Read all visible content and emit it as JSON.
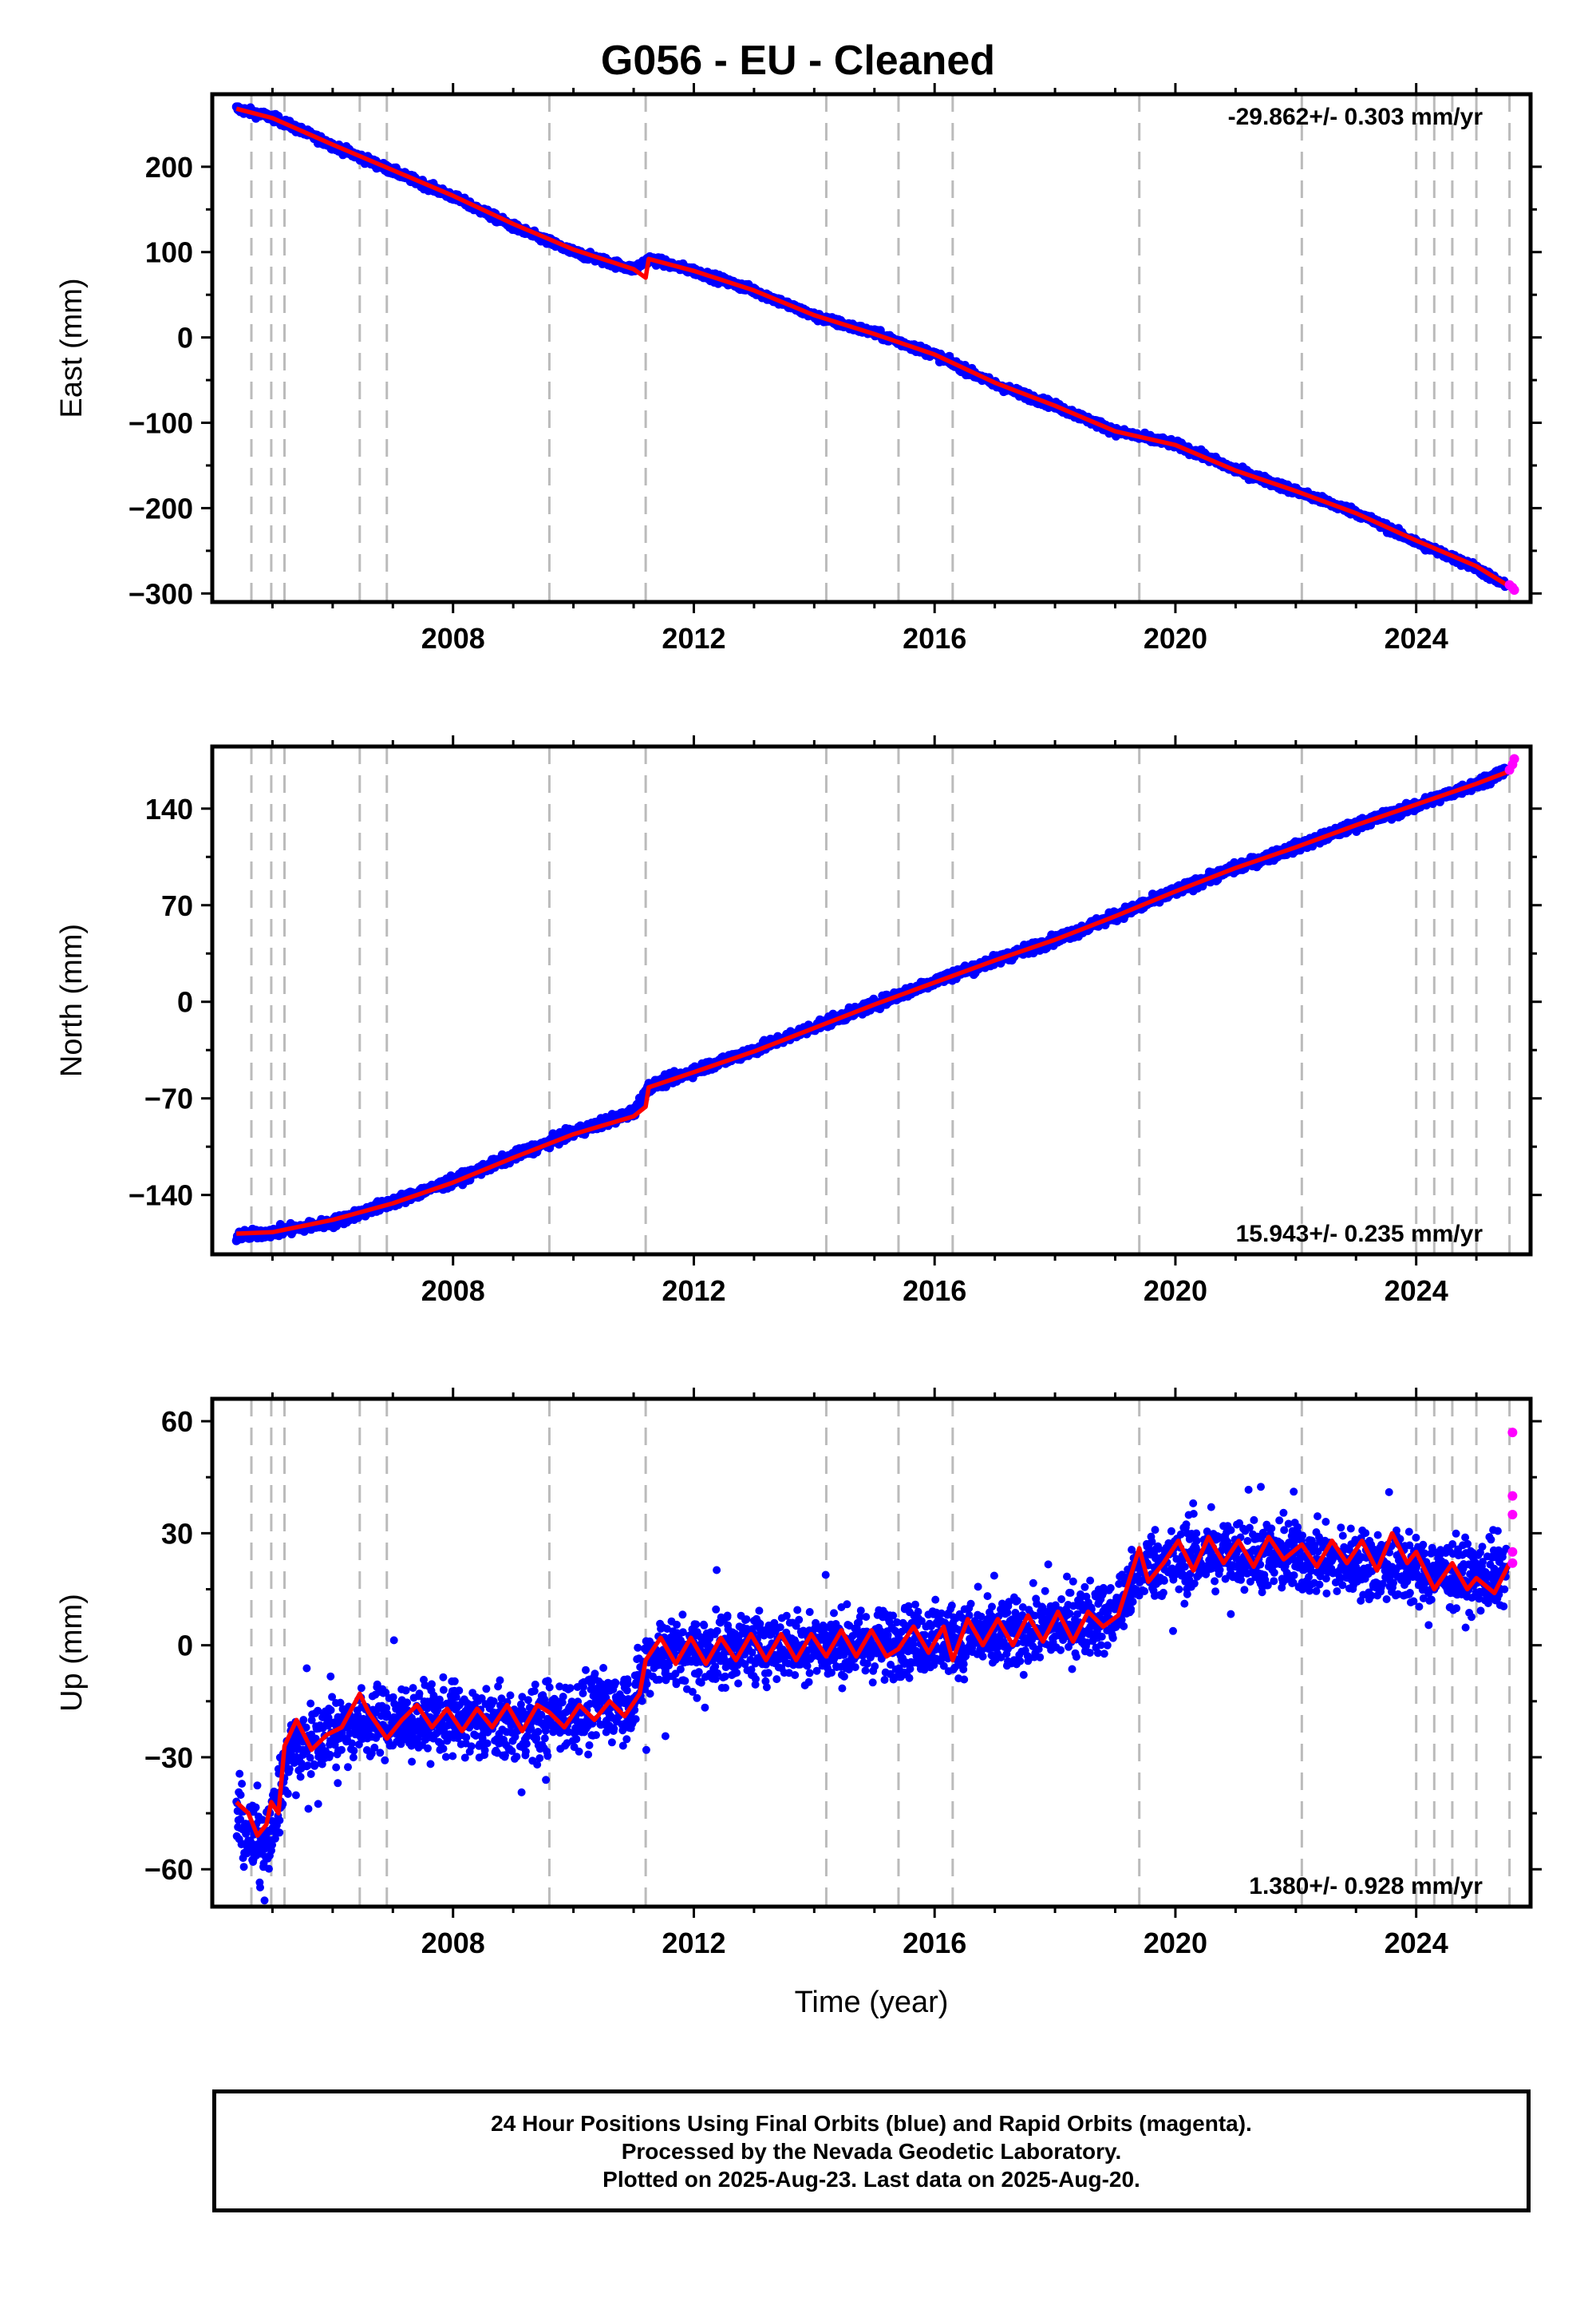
{
  "title": "G056  - EU - Cleaned",
  "footer": {
    "line1": "24 Hour Positions Using Final Orbits (blue) and Rapid Orbits (magenta).",
    "line2": "Processed by the Nevada Geodetic Laboratory.",
    "line3": "Plotted on 2025-Aug-23. Last data on 2025-Aug-20."
  },
  "colors": {
    "final": "#0000ff",
    "rapid": "#ff00ff",
    "model": "#ff0000",
    "breaks": "#bbbbbb"
  },
  "chart_data": [
    {
      "type": "scatter",
      "title": "",
      "ylabel": "East (mm)",
      "xlabel": "",
      "xlim": [
        2004.0,
        2025.9
      ],
      "ylim": [
        -310,
        285
      ],
      "xticks": [
        2008,
        2012,
        2016,
        2020,
        2024
      ],
      "xtick_labels": [
        "2008",
        "2012",
        "2016",
        "2020",
        "2024"
      ],
      "yticks": [
        200,
        100,
        0,
        -100,
        -200,
        -300
      ],
      "ytick_labels": [
        "200",
        "100",
        "0",
        "−100",
        "−200",
        "−300"
      ],
      "rate_label": "-29.862+/- 0.303 mm/yr",
      "rate_position": "top-right",
      "grid": false,
      "breaks": [
        2004.65,
        2004.98,
        2005.2,
        2006.45,
        2006.9,
        2009.6,
        2011.2,
        2014.2,
        2015.4,
        2016.3,
        2019.4,
        2022.1,
        2024.0,
        2024.3,
        2024.6,
        2025.0,
        2025.55
      ],
      "series": [
        {
          "name": "Final Orbits",
          "color": "#0000ff",
          "x": [
            2004.4,
            2005.0,
            2006.0,
            2007.0,
            2008.0,
            2009.0,
            2010.0,
            2011.0,
            2011.25,
            2012.0,
            2013.0,
            2014.0,
            2015.0,
            2016.0,
            2017.0,
            2018.0,
            2019.0,
            2020.0,
            2021.0,
            2022.0,
            2023.0,
            2024.0,
            2025.0,
            2025.5
          ],
          "y": [
            268,
            258,
            225,
            195,
            165,
            130,
            100,
            80,
            92,
            78,
            55,
            25,
            5,
            -20,
            -55,
            -80,
            -110,
            -125,
            -155,
            -180,
            -205,
            -240,
            -270,
            -292
          ]
        },
        {
          "name": "Rapid Orbits",
          "color": "#ff00ff",
          "x": [
            2025.55,
            2025.6,
            2025.63
          ],
          "y": [
            -290,
            -293,
            -296
          ]
        },
        {
          "name": "Model",
          "color": "#ff0000",
          "x": [
            2004.4,
            2005.0,
            2006.0,
            2007.0,
            2008.0,
            2009.0,
            2010.0,
            2011.0,
            2011.2,
            2011.25,
            2012.0,
            2013.0,
            2014.0,
            2015.0,
            2016.0,
            2017.0,
            2018.0,
            2019.0,
            2020.0,
            2021.0,
            2022.0,
            2023.0,
            2024.0,
            2025.0,
            2025.6
          ],
          "y": [
            268,
            257,
            226,
            196,
            166,
            133,
            103,
            80,
            70,
            92,
            78,
            55,
            26,
            4,
            -20,
            -53,
            -80,
            -110,
            -126,
            -156,
            -180,
            -206,
            -238,
            -268,
            -294
          ]
        }
      ]
    },
    {
      "type": "scatter",
      "title": "",
      "ylabel": "North (mm)",
      "xlabel": "",
      "xlim": [
        2004.0,
        2025.9
      ],
      "ylim": [
        -183,
        185
      ],
      "xticks": [
        2008,
        2012,
        2016,
        2020,
        2024
      ],
      "xtick_labels": [
        "2008",
        "2012",
        "2016",
        "2020",
        "2024"
      ],
      "yticks": [
        140,
        70,
        0,
        -70,
        -140
      ],
      "ytick_labels": [
        "140",
        "70",
        "0",
        "−70",
        "−140"
      ],
      "rate_label": "15.943+/- 0.235 mm/yr",
      "rate_position": "bottom-right",
      "grid": false,
      "breaks": [
        2004.65,
        2004.98,
        2005.2,
        2006.45,
        2006.9,
        2009.6,
        2011.2,
        2014.2,
        2015.4,
        2016.3,
        2019.4,
        2022.1,
        2024.0,
        2024.3,
        2024.6,
        2025.0,
        2025.55
      ],
      "series": [
        {
          "name": "Final Orbits",
          "color": "#0000ff",
          "x": [
            2004.4,
            2005.0,
            2006.0,
            2007.0,
            2008.0,
            2009.0,
            2010.0,
            2011.0,
            2011.25,
            2012.0,
            2013.0,
            2014.0,
            2015.0,
            2016.0,
            2017.0,
            2018.0,
            2019.0,
            2020.0,
            2021.0,
            2022.0,
            2023.0,
            2024.0,
            2025.0,
            2025.5
          ],
          "y": [
            -170,
            -167,
            -160,
            -145,
            -130,
            -112,
            -95,
            -80,
            -62,
            -50,
            -35,
            -18,
            -2,
            15,
            30,
            45,
            62,
            80,
            97,
            112,
            128,
            142,
            158,
            168
          ]
        },
        {
          "name": "Rapid Orbits",
          "color": "#ff00ff",
          "x": [
            2025.55,
            2025.6,
            2025.63
          ],
          "y": [
            168,
            172,
            176
          ]
        },
        {
          "name": "Model",
          "color": "#ff0000",
          "x": [
            2004.4,
            2005.0,
            2006.0,
            2007.0,
            2008.0,
            2009.0,
            2010.0,
            2011.0,
            2011.2,
            2011.25,
            2012.0,
            2013.0,
            2014.0,
            2015.0,
            2016.0,
            2017.0,
            2018.0,
            2019.0,
            2020.0,
            2021.0,
            2022.0,
            2023.0,
            2024.0,
            2025.0,
            2025.6
          ],
          "y": [
            -168,
            -167,
            -158,
            -146,
            -131,
            -113,
            -96,
            -83,
            -76,
            -62,
            -51,
            -36,
            -19,
            -2,
            14,
            30,
            45,
            62,
            80,
            97,
            112,
            128,
            143,
            158,
            168
          ]
        }
      ]
    },
    {
      "type": "scatter",
      "title": "",
      "ylabel": "Up (mm)",
      "xlabel": "Time (year)",
      "xlim": [
        2004.0,
        2025.9
      ],
      "ylim": [
        -70,
        66
      ],
      "xticks": [
        2008,
        2012,
        2016,
        2020,
        2024
      ],
      "xtick_labels": [
        "2008",
        "2012",
        "2016",
        "2020",
        "2024"
      ],
      "yticks": [
        60,
        30,
        0,
        -30,
        -60
      ],
      "ytick_labels": [
        "60",
        "30",
        "0",
        "−30",
        "−60"
      ],
      "rate_label": "1.380+/- 0.928 mm/yr",
      "rate_position": "bottom-right",
      "grid": false,
      "breaks": [
        2004.65,
        2004.98,
        2005.2,
        2006.45,
        2006.9,
        2009.6,
        2011.2,
        2014.2,
        2015.4,
        2016.3,
        2019.4,
        2022.1,
        2024.0,
        2024.3,
        2024.6,
        2025.0,
        2025.55
      ],
      "series": [
        {
          "name": "Final Orbits",
          "color": "#0000ff",
          "x": [
            2004.4,
            2004.7,
            2005.0,
            2005.3,
            2006.0,
            2007.0,
            2008.0,
            2009.0,
            2010.0,
            2011.0,
            2011.3,
            2012.0,
            2013.0,
            2014.0,
            2015.0,
            2016.0,
            2017.0,
            2018.0,
            2019.0,
            2019.5,
            2020.0,
            2021.0,
            2022.0,
            2023.0,
            2024.0,
            2025.0,
            2025.5
          ],
          "y": [
            -45,
            -55,
            -48,
            -28,
            -22,
            -20,
            -20,
            -22,
            -18,
            -15,
            -2,
            -2,
            0,
            0,
            0,
            2,
            2,
            5,
            8,
            22,
            22,
            25,
            23,
            22,
            20,
            18,
            20
          ]
        },
        {
          "name": "Rapid Orbits",
          "color": "#ff00ff",
          "x": [
            2025.6,
            2025.6,
            2025.6,
            2025.6,
            2025.6
          ],
          "y": [
            57,
            40,
            35,
            25,
            22
          ]
        },
        {
          "name": "Model",
          "color": "#ff0000",
          "x": [
            2004.4,
            2004.6,
            2004.75,
            2004.9,
            2004.98,
            2005.1,
            2005.2,
            2005.4,
            2005.65,
            2005.9,
            2006.15,
            2006.45,
            2006.6,
            2006.9,
            2007.15,
            2007.4,
            2007.65,
            2007.9,
            2008.15,
            2008.4,
            2008.65,
            2008.9,
            2009.15,
            2009.4,
            2009.6,
            2009.85,
            2010.1,
            2010.35,
            2010.6,
            2010.85,
            2011.1,
            2011.2,
            2011.45,
            2011.7,
            2011.95,
            2012.2,
            2012.45,
            2012.7,
            2012.95,
            2013.2,
            2013.45,
            2013.7,
            2013.95,
            2014.2,
            2014.45,
            2014.7,
            2014.95,
            2015.2,
            2015.4,
            2015.65,
            2015.9,
            2016.15,
            2016.3,
            2016.55,
            2016.8,
            2017.05,
            2017.3,
            2017.55,
            2017.8,
            2018.05,
            2018.3,
            2018.55,
            2018.8,
            2019.05,
            2019.4,
            2019.55,
            2019.8,
            2020.05,
            2020.3,
            2020.55,
            2020.8,
            2021.05,
            2021.3,
            2021.55,
            2021.8,
            2022.1,
            2022.35,
            2022.6,
            2022.85,
            2023.1,
            2023.35,
            2023.6,
            2023.85,
            2024.0,
            2024.3,
            2024.6,
            2024.85,
            2025.0,
            2025.3,
            2025.55
          ],
          "y": [
            -42,
            -45,
            -51,
            -48,
            -42,
            -45,
            -27,
            -20,
            -28,
            -24,
            -22,
            -13,
            -18,
            -25,
            -20,
            -16,
            -22,
            -17,
            -23,
            -17,
            -22,
            -16,
            -23,
            -16,
            -18,
            -22,
            -16,
            -20,
            -15,
            -19,
            -13,
            -4,
            2,
            -5,
            2,
            -5,
            2,
            -4,
            3,
            -4,
            3,
            -4,
            3,
            -3,
            4,
            -3,
            4,
            -3,
            -1,
            5,
            -2,
            5,
            -4,
            7,
            0,
            7,
            0,
            8,
            1,
            9,
            1,
            9,
            5,
            8,
            26,
            17,
            22,
            28,
            20,
            29,
            22,
            28,
            21,
            29,
            23,
            27,
            21,
            28,
            22,
            28,
            20,
            30,
            22,
            25,
            15,
            22,
            15,
            18,
            14,
            22
          ]
        }
      ]
    }
  ]
}
